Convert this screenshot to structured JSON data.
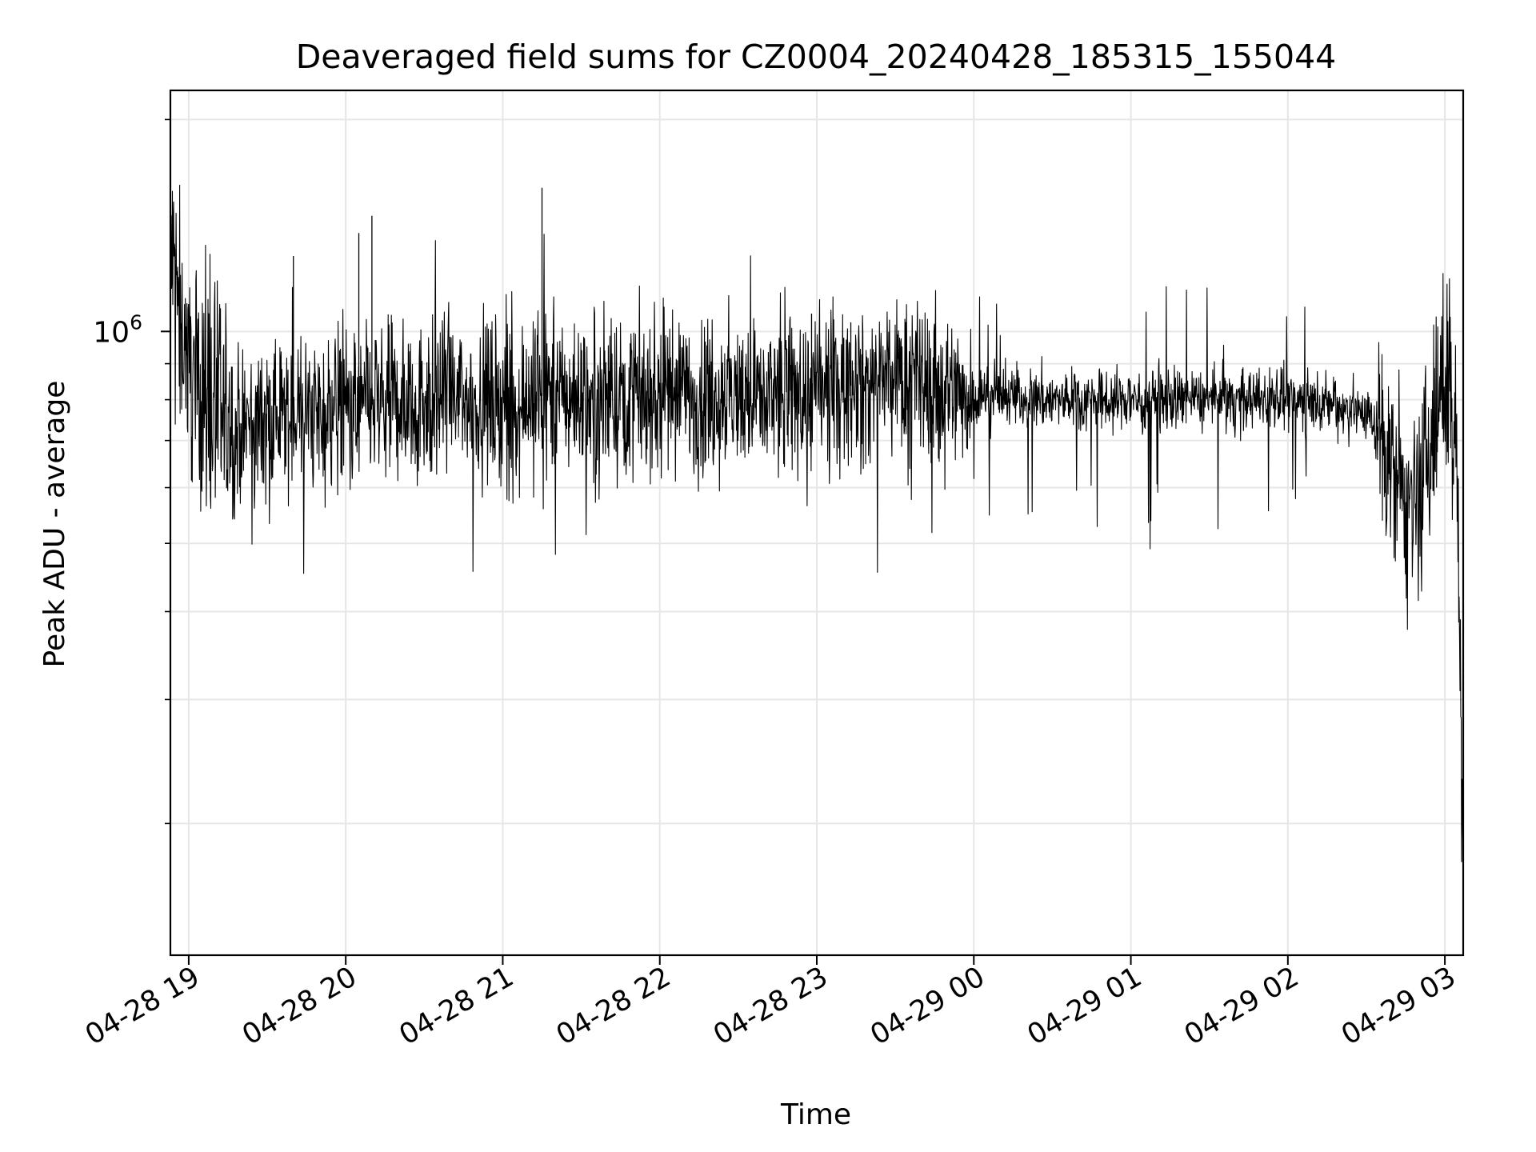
{
  "chart_data": {
    "type": "line",
    "title": "Deaveraged field sums for CZ0004_20240428_185315_155044",
    "xlabel": "Time",
    "ylabel": "Peak ADU - average",
    "y_scale": "log",
    "grid": true,
    "x_tick_labels": [
      "04-28 19",
      "04-28 20",
      "04-28 21",
      "04-28 22",
      "04-28 23",
      "04-29 00",
      "04-29 01",
      "04-29 02",
      "04-29 03"
    ],
    "y_tick_label": {
      "base": "10",
      "exponent": "6"
    },
    "x_range": [
      "2024-04-28 18:53",
      "2024-04-29 03:07"
    ],
    "ylim": [
      130000,
      2200000
    ],
    "colors": {
      "line": "#000000",
      "grid": "#e6e6e6"
    },
    "series": [
      {
        "x": [
          "2024-04-28 18:53",
          "2024-04-28 19:00",
          "2024-04-28 19:15",
          "2024-04-28 19:30",
          "2024-04-28 19:45",
          "2024-04-28 20:00",
          "2024-04-28 20:15",
          "2024-04-28 20:30",
          "2024-04-28 20:45",
          "2024-04-28 21:00",
          "2024-04-28 21:15",
          "2024-04-28 21:30",
          "2024-04-28 21:45",
          "2024-04-28 22:00",
          "2024-04-28 22:15",
          "2024-04-28 22:30",
          "2024-04-28 22:45",
          "2024-04-28 23:00",
          "2024-04-28 23:15",
          "2024-04-28 23:30",
          "2024-04-28 23:45",
          "2024-04-29 00:00",
          "2024-04-29 00:15",
          "2024-04-29 00:30",
          "2024-04-29 00:45",
          "2024-04-29 01:00",
          "2024-04-29 01:15",
          "2024-04-29 01:30",
          "2024-04-29 01:45",
          "2024-04-29 02:00",
          "2024-04-29 02:15",
          "2024-04-29 02:30",
          "2024-04-29 02:40",
          "2024-04-29 02:48",
          "2024-04-29 02:55",
          "2024-04-29 03:00",
          "2024-04-29 03:04",
          "2024-04-29 03:07"
        ],
        "values": [
          1300000,
          900000,
          720000,
          760000,
          760000,
          780000,
          790000,
          800000,
          800000,
          800000,
          810000,
          810000,
          810000,
          810000,
          810000,
          810000,
          810000,
          820000,
          840000,
          850000,
          840000,
          810000,
          810000,
          800000,
          800000,
          800000,
          800000,
          800000,
          800000,
          800000,
          790000,
          770000,
          650000,
          520000,
          700000,
          850000,
          780000,
          200000
        ]
      }
    ]
  }
}
